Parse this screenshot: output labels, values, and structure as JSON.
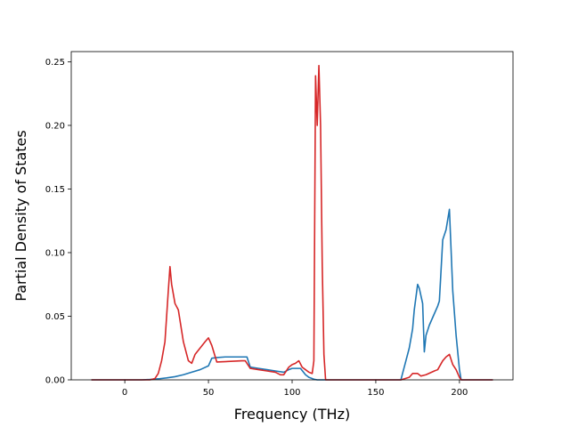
{
  "chart_data": {
    "type": "line",
    "xlabel": "Frequency (THz)",
    "ylabel": "Partial Density of States",
    "xlim": [
      -32,
      232
    ],
    "ylim": [
      0,
      0.258
    ],
    "xticks": [
      0,
      50,
      100,
      150,
      200
    ],
    "yticks": [
      0.0,
      0.05,
      0.1,
      0.15,
      0.2,
      0.25
    ],
    "ytick_labels": [
      "0.00",
      "0.05",
      "0.10",
      "0.15",
      "0.20",
      "0.25"
    ],
    "grid": false,
    "series": [
      {
        "color": "#1f77b4",
        "x": [
          -20,
          0,
          10,
          15,
          20,
          25,
          30,
          35,
          40,
          45,
          50,
          52,
          55,
          60,
          65,
          70,
          73,
          75,
          80,
          85,
          90,
          95,
          98,
          100,
          105,
          108,
          110,
          113,
          115,
          118,
          120,
          125,
          150,
          165,
          166,
          168,
          170,
          172,
          173,
          175,
          176,
          178,
          179,
          180,
          182,
          185,
          187,
          188,
          190,
          192,
          194,
          196,
          198,
          200,
          201,
          220
        ],
        "y": [
          0,
          0,
          0,
          0.0003,
          0.0008,
          0.0015,
          0.0025,
          0.004,
          0.006,
          0.008,
          0.011,
          0.017,
          0.0175,
          0.018,
          0.018,
          0.018,
          0.018,
          0.01,
          0.009,
          0.008,
          0.007,
          0.006,
          0.008,
          0.009,
          0.009,
          0.004,
          0.002,
          0.0005,
          0,
          0,
          0,
          0,
          0,
          0,
          0.005,
          0.015,
          0.025,
          0.04,
          0.055,
          0.075,
          0.072,
          0.06,
          0.022,
          0.035,
          0.043,
          0.052,
          0.058,
          0.062,
          0.11,
          0.118,
          0.134,
          0.07,
          0.035,
          0.008,
          0,
          0
        ]
      },
      {
        "color": "#d62728",
        "x": [
          -20,
          0,
          15,
          18,
          20,
          22,
          24,
          25,
          26,
          27,
          28,
          30,
          32,
          35,
          38,
          40,
          42,
          45,
          48,
          50,
          52,
          55,
          70,
          72,
          75,
          80,
          85,
          90,
          93,
          95,
          98,
          100,
          102,
          104,
          106,
          108,
          110,
          112,
          113,
          114,
          115,
          116,
          117,
          118,
          119,
          120,
          121,
          125,
          150,
          165,
          170,
          172,
          175,
          177,
          180,
          185,
          187,
          190,
          192,
          194,
          196,
          198,
          200,
          201,
          220
        ],
        "y": [
          0,
          0,
          0,
          0.001,
          0.005,
          0.015,
          0.03,
          0.05,
          0.07,
          0.089,
          0.075,
          0.06,
          0.055,
          0.03,
          0.015,
          0.013,
          0.02,
          0.025,
          0.03,
          0.033,
          0.027,
          0.014,
          0.015,
          0.015,
          0.009,
          0.008,
          0.007,
          0.006,
          0.004,
          0.004,
          0.01,
          0.012,
          0.013,
          0.015,
          0.01,
          0.008,
          0.006,
          0.005,
          0.015,
          0.239,
          0.2,
          0.247,
          0.2,
          0.09,
          0.02,
          0,
          0,
          0,
          0,
          0,
          0.002,
          0.005,
          0.005,
          0.003,
          0.004,
          0.007,
          0.008,
          0.015,
          0.018,
          0.02,
          0.012,
          0.008,
          0.002,
          0,
          0
        ]
      }
    ]
  }
}
